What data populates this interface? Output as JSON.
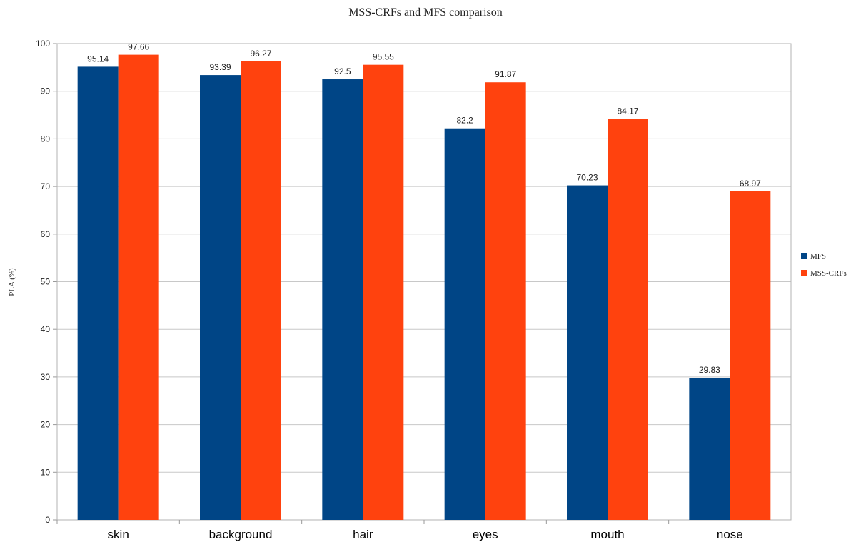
{
  "chart_data": {
    "type": "bar",
    "title": "MSS-CRFs and MFS comparison",
    "xlabel": "",
    "ylabel": "PLA (%)",
    "categories": [
      "skin",
      "background",
      "hair",
      "eyes",
      "mouth",
      "nose"
    ],
    "series": [
      {
        "name": "MFS",
        "color": "#004586",
        "values": [
          95.14,
          93.39,
          92.5,
          82.2,
          70.23,
          29.83
        ]
      },
      {
        "name": "MSS-CRFs",
        "color": "#ff420e",
        "values": [
          97.66,
          96.27,
          95.55,
          91.87,
          84.17,
          68.97
        ]
      }
    ],
    "ylim": [
      0,
      100
    ],
    "yticks": [
      0,
      10,
      20,
      30,
      40,
      50,
      60,
      70,
      80,
      90,
      100
    ],
    "grid": true,
    "legend": "right"
  }
}
